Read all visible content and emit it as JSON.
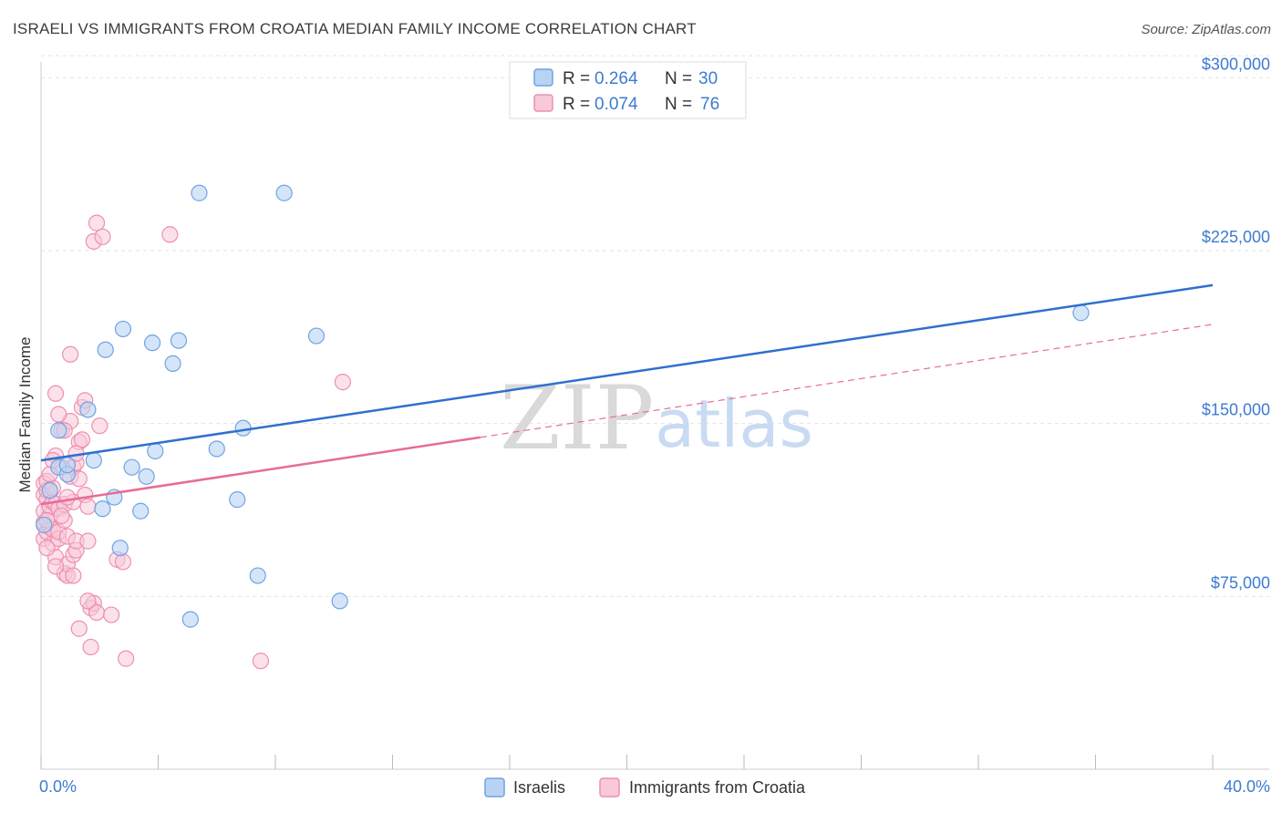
{
  "title": "ISRAELI VS IMMIGRANTS FROM CROATIA MEDIAN FAMILY INCOME CORRELATION CHART",
  "source": "Source: ZipAtlas.com",
  "watermark": {
    "zip": "ZIP",
    "atlas": "atlas"
  },
  "colors": {
    "israelis": "#6fa3e3",
    "israelis_fill": "#b9d3f3",
    "croatia": "#ee8fb0",
    "croatia_fill": "#f8c9d9",
    "israelis_line": "#2f6fd0",
    "croatia_line": "#e86b98",
    "grid": "#e3e3e3",
    "axis_label": "#3d7bd1"
  },
  "legend": {
    "rows": [
      {
        "r_label": "R =",
        "r_value": "0.264",
        "n_label": "N =",
        "n_value": "30"
      },
      {
        "r_label": "R =",
        "r_value": "0.074",
        "n_label": "N =",
        "n_value": "76"
      }
    ]
  },
  "bottom_legend": [
    "Israelis",
    "Immigrants from Croatia"
  ],
  "chart_data": {
    "type": "scatter",
    "title": "ISRAELI VS IMMIGRANTS FROM CROATIA MEDIAN FAMILY INCOME CORRELATION CHART",
    "xlabel": "",
    "ylabel": "Median Family Income",
    "xlim": [
      0,
      40
    ],
    "ylim": [
      0,
      310000
    ],
    "x_tick_labels": [
      "0.0%",
      "40.0%"
    ],
    "y_ticks": [
      75000,
      150000,
      225000,
      300000
    ],
    "y_tick_labels": [
      "$75,000",
      "$150,000",
      "$225,000",
      "$300,000"
    ],
    "grid": true,
    "series": [
      {
        "name": "Israelis",
        "r": 0.264,
        "n": 30,
        "trend": {
          "x": [
            0,
            40
          ],
          "y": [
            134000,
            210000
          ]
        },
        "points": [
          [
            0.3,
            121000
          ],
          [
            0.6,
            147000
          ],
          [
            0.6,
            131000
          ],
          [
            0.9,
            128000
          ],
          [
            0.9,
            132000
          ],
          [
            1.6,
            156000
          ],
          [
            1.8,
            134000
          ],
          [
            2.1,
            113000
          ],
          [
            2.2,
            182000
          ],
          [
            2.5,
            118000
          ],
          [
            2.7,
            96000
          ],
          [
            2.8,
            191000
          ],
          [
            3.1,
            131000
          ],
          [
            3.4,
            112000
          ],
          [
            3.6,
            127000
          ],
          [
            3.8,
            185000
          ],
          [
            3.9,
            138000
          ],
          [
            4.5,
            176000
          ],
          [
            4.7,
            186000
          ],
          [
            5.1,
            65000
          ],
          [
            5.4,
            250000
          ],
          [
            6.0,
            139000
          ],
          [
            6.7,
            117000
          ],
          [
            6.9,
            148000
          ],
          [
            7.4,
            84000
          ],
          [
            8.3,
            250000
          ],
          [
            9.4,
            188000
          ],
          [
            10.2,
            73000
          ],
          [
            35.5,
            198000
          ],
          [
            0.1,
            106000
          ]
        ]
      },
      {
        "name": "Immigrants from Croatia",
        "r": 0.074,
        "n": 76,
        "trend": {
          "x": [
            0,
            15
          ],
          "y": [
            115000,
            144000
          ]
        },
        "trend_dashed": {
          "x": [
            15,
            40
          ],
          "y": [
            144000,
            193000
          ]
        },
        "points": [
          [
            0.1,
            100000
          ],
          [
            0.1,
            107000
          ],
          [
            0.1,
            112000
          ],
          [
            0.1,
            119000
          ],
          [
            0.1,
            124000
          ],
          [
            0.2,
            103000
          ],
          [
            0.2,
            117000
          ],
          [
            0.2,
            121000
          ],
          [
            0.2,
            125000
          ],
          [
            0.3,
            105000
          ],
          [
            0.3,
            110000
          ],
          [
            0.3,
            114000
          ],
          [
            0.4,
            98000
          ],
          [
            0.4,
            104000
          ],
          [
            0.4,
            116000
          ],
          [
            0.4,
            122000
          ],
          [
            0.5,
            92000
          ],
          [
            0.5,
            115000
          ],
          [
            0.5,
            136000
          ],
          [
            0.5,
            163000
          ],
          [
            0.6,
            100000
          ],
          [
            0.6,
            103000
          ],
          [
            0.6,
            113000
          ],
          [
            0.7,
            131000
          ],
          [
            0.7,
            147000
          ],
          [
            0.8,
            85000
          ],
          [
            0.8,
            108000
          ],
          [
            0.8,
            115000
          ],
          [
            0.9,
            84000
          ],
          [
            0.9,
            89000
          ],
          [
            0.9,
            101000
          ],
          [
            1.0,
            127000
          ],
          [
            1.0,
            151000
          ],
          [
            1.0,
            180000
          ],
          [
            1.1,
            84000
          ],
          [
            1.1,
            93000
          ],
          [
            1.1,
            116000
          ],
          [
            1.1,
            131000
          ],
          [
            1.2,
            95000
          ],
          [
            1.2,
            99000
          ],
          [
            1.2,
            133000
          ],
          [
            1.3,
            142000
          ],
          [
            1.3,
            61000
          ],
          [
            1.4,
            143000
          ],
          [
            1.4,
            157000
          ],
          [
            1.5,
            119000
          ],
          [
            1.5,
            160000
          ],
          [
            1.6,
            114000
          ],
          [
            1.6,
            99000
          ],
          [
            1.7,
            70000
          ],
          [
            1.7,
            53000
          ],
          [
            1.8,
            72000
          ],
          [
            1.8,
            229000
          ],
          [
            1.9,
            68000
          ],
          [
            1.9,
            237000
          ],
          [
            2.0,
            149000
          ],
          [
            2.1,
            231000
          ],
          [
            2.4,
            67000
          ],
          [
            2.6,
            91000
          ],
          [
            2.8,
            90000
          ],
          [
            2.9,
            48000
          ],
          [
            4.4,
            232000
          ],
          [
            7.5,
            47000
          ],
          [
            10.3,
            168000
          ],
          [
            0.2,
            96000
          ],
          [
            0.6,
            154000
          ],
          [
            0.9,
            118000
          ],
          [
            1.3,
            126000
          ],
          [
            0.3,
            128000
          ],
          [
            0.7,
            110000
          ],
          [
            0.4,
            134000
          ],
          [
            1.6,
            73000
          ],
          [
            0.8,
            147000
          ],
          [
            0.5,
            88000
          ],
          [
            1.2,
            137000
          ],
          [
            0.2,
            108000
          ]
        ]
      }
    ]
  }
}
